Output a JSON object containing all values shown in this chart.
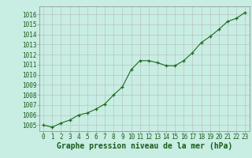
{
  "x": [
    0,
    1,
    2,
    3,
    4,
    5,
    6,
    7,
    8,
    9,
    10,
    11,
    12,
    13,
    14,
    15,
    16,
    17,
    18,
    19,
    20,
    21,
    22,
    23
  ],
  "y": [
    1005.0,
    1004.8,
    1005.2,
    1005.5,
    1006.0,
    1006.2,
    1006.6,
    1007.1,
    1008.0,
    1008.8,
    1010.5,
    1011.4,
    1011.4,
    1011.2,
    1010.9,
    1010.9,
    1011.4,
    1012.2,
    1013.2,
    1013.8,
    1014.5,
    1015.3,
    1015.6,
    1016.2
  ],
  "line_color": "#1a6b1a",
  "marker_color": "#1a6b1a",
  "bg_color": "#c8ede3",
  "grid_color": "#b0b0b0",
  "ylabel_ticks": [
    1005,
    1006,
    1007,
    1008,
    1009,
    1010,
    1011,
    1012,
    1013,
    1014,
    1015,
    1016
  ],
  "xlabel_label": "Graphe pression niveau de la mer (hPa)",
  "ylim": [
    1004.4,
    1016.8
  ],
  "xlim": [
    -0.5,
    23.5
  ],
  "tick_fontsize": 5.5,
  "label_fontsize": 7.0
}
